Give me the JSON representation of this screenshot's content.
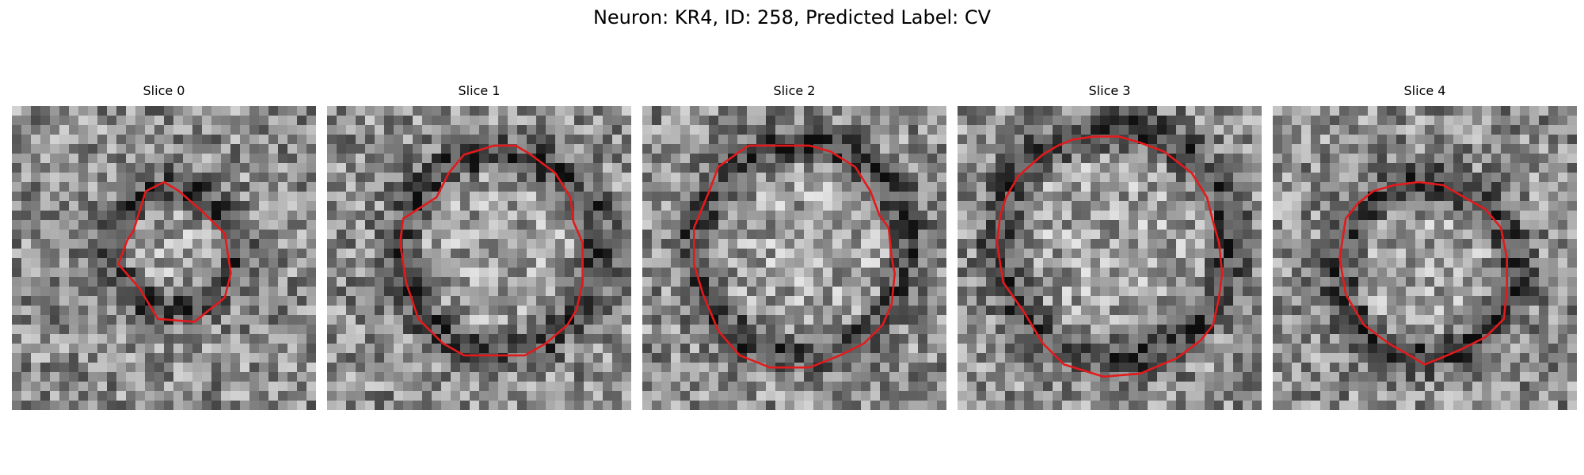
{
  "figure": {
    "title": "Neuron: KR4, ID: 258, Predicted Label: CV",
    "contour_color": "#e31a1c"
  },
  "panels": [
    {
      "title": "Slice 0",
      "seed": 11,
      "contour": [
        [
          0.4,
          0.41
        ],
        [
          0.44,
          0.28
        ],
        [
          0.5,
          0.25
        ],
        [
          0.55,
          0.28
        ],
        [
          0.63,
          0.35
        ],
        [
          0.7,
          0.42
        ],
        [
          0.72,
          0.55
        ],
        [
          0.7,
          0.63
        ],
        [
          0.6,
          0.71
        ],
        [
          0.48,
          0.7
        ],
        [
          0.42,
          0.6
        ],
        [
          0.35,
          0.52
        ],
        [
          0.38,
          0.44
        ]
      ]
    },
    {
      "title": "Slice 1",
      "seed": 23,
      "contour": [
        [
          0.36,
          0.3
        ],
        [
          0.4,
          0.22
        ],
        [
          0.45,
          0.16
        ],
        [
          0.55,
          0.13
        ],
        [
          0.62,
          0.13
        ],
        [
          0.67,
          0.16
        ],
        [
          0.75,
          0.22
        ],
        [
          0.8,
          0.3
        ],
        [
          0.81,
          0.38
        ],
        [
          0.84,
          0.45
        ],
        [
          0.84,
          0.58
        ],
        [
          0.82,
          0.67
        ],
        [
          0.79,
          0.72
        ],
        [
          0.72,
          0.78
        ],
        [
          0.65,
          0.82
        ],
        [
          0.55,
          0.82
        ],
        [
          0.45,
          0.82
        ],
        [
          0.38,
          0.78
        ],
        [
          0.3,
          0.7
        ],
        [
          0.26,
          0.58
        ],
        [
          0.24,
          0.45
        ],
        [
          0.25,
          0.37
        ]
      ]
    },
    {
      "title": "Slice 2",
      "seed": 37,
      "contour": [
        [
          0.22,
          0.28
        ],
        [
          0.25,
          0.2
        ],
        [
          0.32,
          0.15
        ],
        [
          0.35,
          0.13
        ],
        [
          0.45,
          0.13
        ],
        [
          0.55,
          0.13
        ],
        [
          0.62,
          0.15
        ],
        [
          0.7,
          0.2
        ],
        [
          0.75,
          0.28
        ],
        [
          0.78,
          0.36
        ],
        [
          0.81,
          0.4
        ],
        [
          0.82,
          0.5
        ],
        [
          0.83,
          0.55
        ],
        [
          0.82,
          0.65
        ],
        [
          0.79,
          0.72
        ],
        [
          0.73,
          0.78
        ],
        [
          0.65,
          0.82
        ],
        [
          0.55,
          0.86
        ],
        [
          0.42,
          0.86
        ],
        [
          0.32,
          0.82
        ],
        [
          0.25,
          0.74
        ],
        [
          0.2,
          0.62
        ],
        [
          0.17,
          0.52
        ],
        [
          0.17,
          0.4
        ]
      ]
    },
    {
      "title": "Slice 3",
      "seed": 41,
      "contour": [
        [
          0.16,
          0.3
        ],
        [
          0.2,
          0.23
        ],
        [
          0.28,
          0.16
        ],
        [
          0.33,
          0.13
        ],
        [
          0.38,
          0.11
        ],
        [
          0.45,
          0.1
        ],
        [
          0.53,
          0.1
        ],
        [
          0.6,
          0.12
        ],
        [
          0.68,
          0.15
        ],
        [
          0.77,
          0.22
        ],
        [
          0.82,
          0.3
        ],
        [
          0.84,
          0.38
        ],
        [
          0.86,
          0.45
        ],
        [
          0.87,
          0.55
        ],
        [
          0.86,
          0.63
        ],
        [
          0.84,
          0.72
        ],
        [
          0.8,
          0.77
        ],
        [
          0.72,
          0.83
        ],
        [
          0.6,
          0.88
        ],
        [
          0.48,
          0.89
        ],
        [
          0.35,
          0.85
        ],
        [
          0.28,
          0.78
        ],
        [
          0.22,
          0.68
        ],
        [
          0.15,
          0.58
        ],
        [
          0.13,
          0.45
        ],
        [
          0.14,
          0.36
        ]
      ]
    },
    {
      "title": "Slice 4",
      "seed": 53,
      "contour": [
        [
          0.24,
          0.37
        ],
        [
          0.28,
          0.32
        ],
        [
          0.33,
          0.28
        ],
        [
          0.4,
          0.26
        ],
        [
          0.48,
          0.25
        ],
        [
          0.56,
          0.26
        ],
        [
          0.63,
          0.3
        ],
        [
          0.7,
          0.34
        ],
        [
          0.75,
          0.4
        ],
        [
          0.77,
          0.5
        ],
        [
          0.77,
          0.6
        ],
        [
          0.76,
          0.7
        ],
        [
          0.7,
          0.76
        ],
        [
          0.62,
          0.8
        ],
        [
          0.55,
          0.83
        ],
        [
          0.5,
          0.85
        ],
        [
          0.45,
          0.82
        ],
        [
          0.38,
          0.78
        ],
        [
          0.3,
          0.72
        ],
        [
          0.24,
          0.62
        ],
        [
          0.22,
          0.5
        ]
      ]
    }
  ]
}
